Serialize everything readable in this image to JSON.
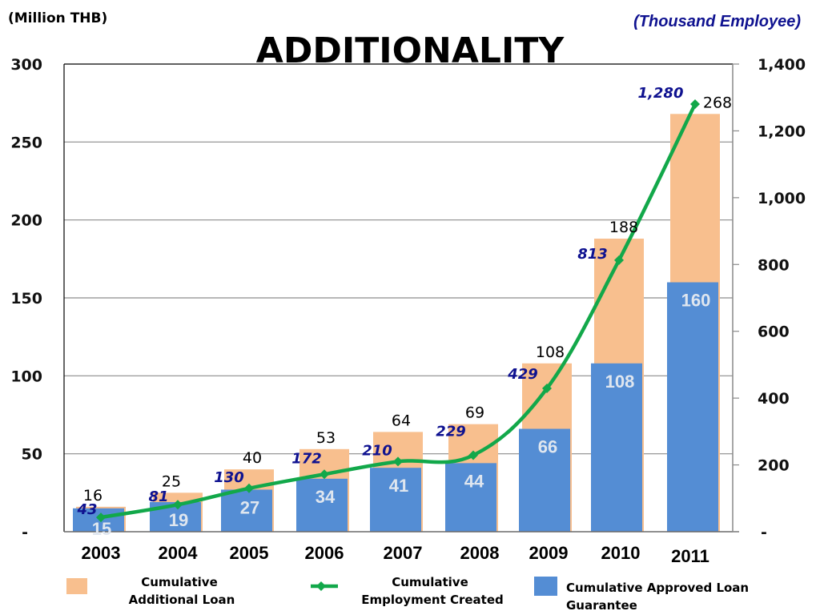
{
  "chart_data": {
    "type": "bar",
    "title": "ADDITIONALITY",
    "ylabel_left": "(Million THB)",
    "ylabel_right": "(Thousand Employee)",
    "categories": [
      "2003",
      "2004",
      "2005",
      "2006",
      "2007",
      "2008",
      "2009",
      "2010",
      "2011"
    ],
    "series": [
      {
        "name": "Cumulative Additional Loan",
        "kind": "bar",
        "axis": "left",
        "color": "#f8bf8e",
        "values": [
          16,
          25,
          40,
          53,
          64,
          69,
          108,
          188,
          268
        ],
        "labels": [
          "16",
          "25",
          "40",
          "53",
          "64",
          "69",
          "108",
          "188",
          "268"
        ]
      },
      {
        "name": "Cumulative Approved Loan Guarantee",
        "kind": "bar",
        "axis": "left",
        "color": "#548dd4",
        "values": [
          15,
          19,
          27,
          34,
          41,
          44,
          66,
          108,
          160
        ],
        "labels": [
          "15",
          "19",
          "27",
          "34",
          "41",
          "44",
          "66",
          "108",
          "160"
        ]
      },
      {
        "name": "Cumulative Employment Created",
        "kind": "line",
        "axis": "right",
        "color": "#12a84a",
        "values": [
          43,
          81,
          130,
          172,
          210,
          229,
          429,
          813,
          1280
        ],
        "labels": [
          "43",
          "81",
          "130",
          "172",
          "210",
          "229",
          "429",
          "813",
          "1,280"
        ]
      }
    ],
    "left_axis": {
      "ylim": [
        0,
        300
      ],
      "ticks": [
        0,
        50,
        100,
        150,
        200,
        250,
        300
      ],
      "tick_labels": [
        "-",
        "50",
        "100",
        "150",
        "200",
        "250",
        "300"
      ]
    },
    "right_axis": {
      "ylim": [
        0,
        1400
      ],
      "ticks": [
        0,
        200,
        400,
        600,
        800,
        1000,
        1200,
        1400
      ],
      "tick_labels": [
        "-",
        "200",
        "400",
        "600",
        "800",
        "1,000",
        "1,200",
        "1,400"
      ]
    },
    "grid": true,
    "legend": {
      "placement": "bottom",
      "items": [
        {
          "label_lines": [
            "Cumulative",
            "Additional Loan"
          ],
          "marker": "square",
          "color": "#f8bf8e"
        },
        {
          "label_lines": [
            "Cumulative",
            "Employment Created"
          ],
          "marker": "line-diamond",
          "color": "#12a84a"
        },
        {
          "label_lines": [
            "Cumulative  Approved Loan",
            "Guarantee"
          ],
          "marker": "square",
          "color": "#548dd4"
        }
      ]
    }
  }
}
